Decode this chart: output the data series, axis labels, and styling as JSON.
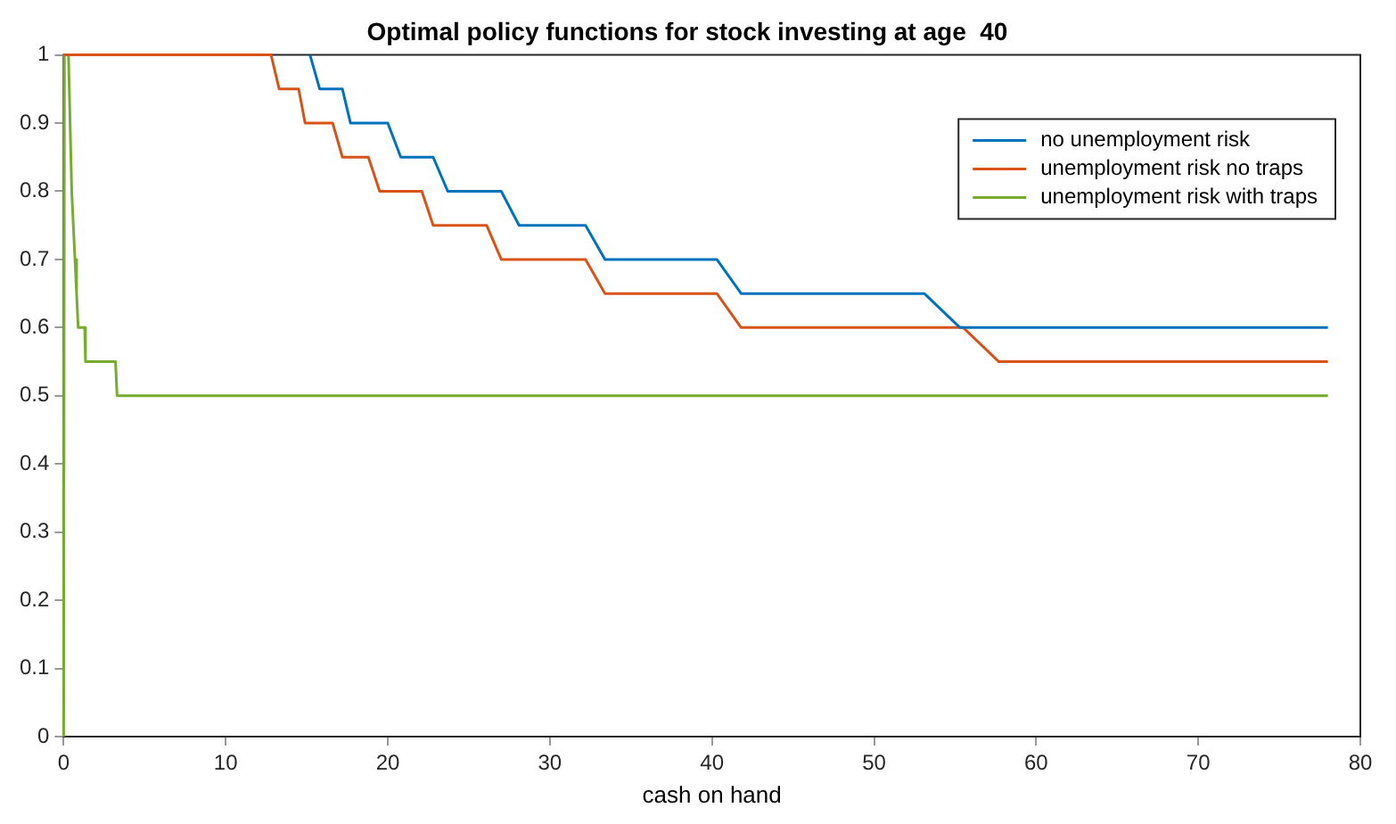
{
  "chart_data": {
    "type": "line",
    "title": "Optimal policy functions for stock investing at age  40",
    "xlabel": "cash on hand",
    "xlim": [
      0,
      80
    ],
    "xticks": [
      0,
      10,
      20,
      30,
      40,
      50,
      60,
      70,
      80
    ],
    "ylim": [
      0,
      1
    ],
    "yticks": [
      0,
      0.1,
      0.2,
      0.3,
      0.4,
      0.5,
      0.6,
      0.7,
      0.8,
      0.9,
      1
    ],
    "grid": false,
    "legend": "top right",
    "marker": "none",
    "line_style": "solid",
    "series": [
      {
        "name": "no unemployment risk",
        "color": "#0072bd",
        "x": [
          15.2,
          15.8,
          17.2,
          17.7,
          20.0,
          20.8,
          22.8,
          23.7,
          27.0,
          28.1,
          32.2,
          33.4,
          40.3,
          41.8,
          53.1,
          55.3,
          78
        ],
        "values": [
          1,
          0.95,
          0.95,
          0.9,
          0.9,
          0.85,
          0.85,
          0.8,
          0.8,
          0.75,
          0.75,
          0.7,
          0.7,
          0.65,
          0.65,
          0.6,
          0.6
        ]
      },
      {
        "name": "unemployment risk no traps",
        "color": "#d95319",
        "x": [
          0,
          12.8,
          13.3,
          14.5,
          14.9,
          16.6,
          17.2,
          18.8,
          19.5,
          22.1,
          22.8,
          26.1,
          27.0,
          32.2,
          33.4,
          40.3,
          41.8,
          55.5,
          57.7,
          78
        ],
        "values": [
          1,
          1,
          0.95,
          0.95,
          0.9,
          0.9,
          0.85,
          0.85,
          0.8,
          0.8,
          0.75,
          0.75,
          0.7,
          0.7,
          0.65,
          0.65,
          0.6,
          0.6,
          0.55,
          0.55
        ]
      },
      {
        "name": "unemployment risk with traps",
        "color": "#77ac30",
        "x": [
          0,
          0.05,
          0.3,
          0.4,
          0.5,
          0.6,
          0.7,
          0.8,
          0.9,
          1.3,
          1.35,
          3.2,
          3.3,
          78
        ],
        "values": [
          0,
          1,
          1,
          0.9,
          0.8,
          0.75,
          0.7,
          0.65,
          0.6,
          0.6,
          0.55,
          0.55,
          0.5,
          0.5
        ]
      }
    ]
  }
}
